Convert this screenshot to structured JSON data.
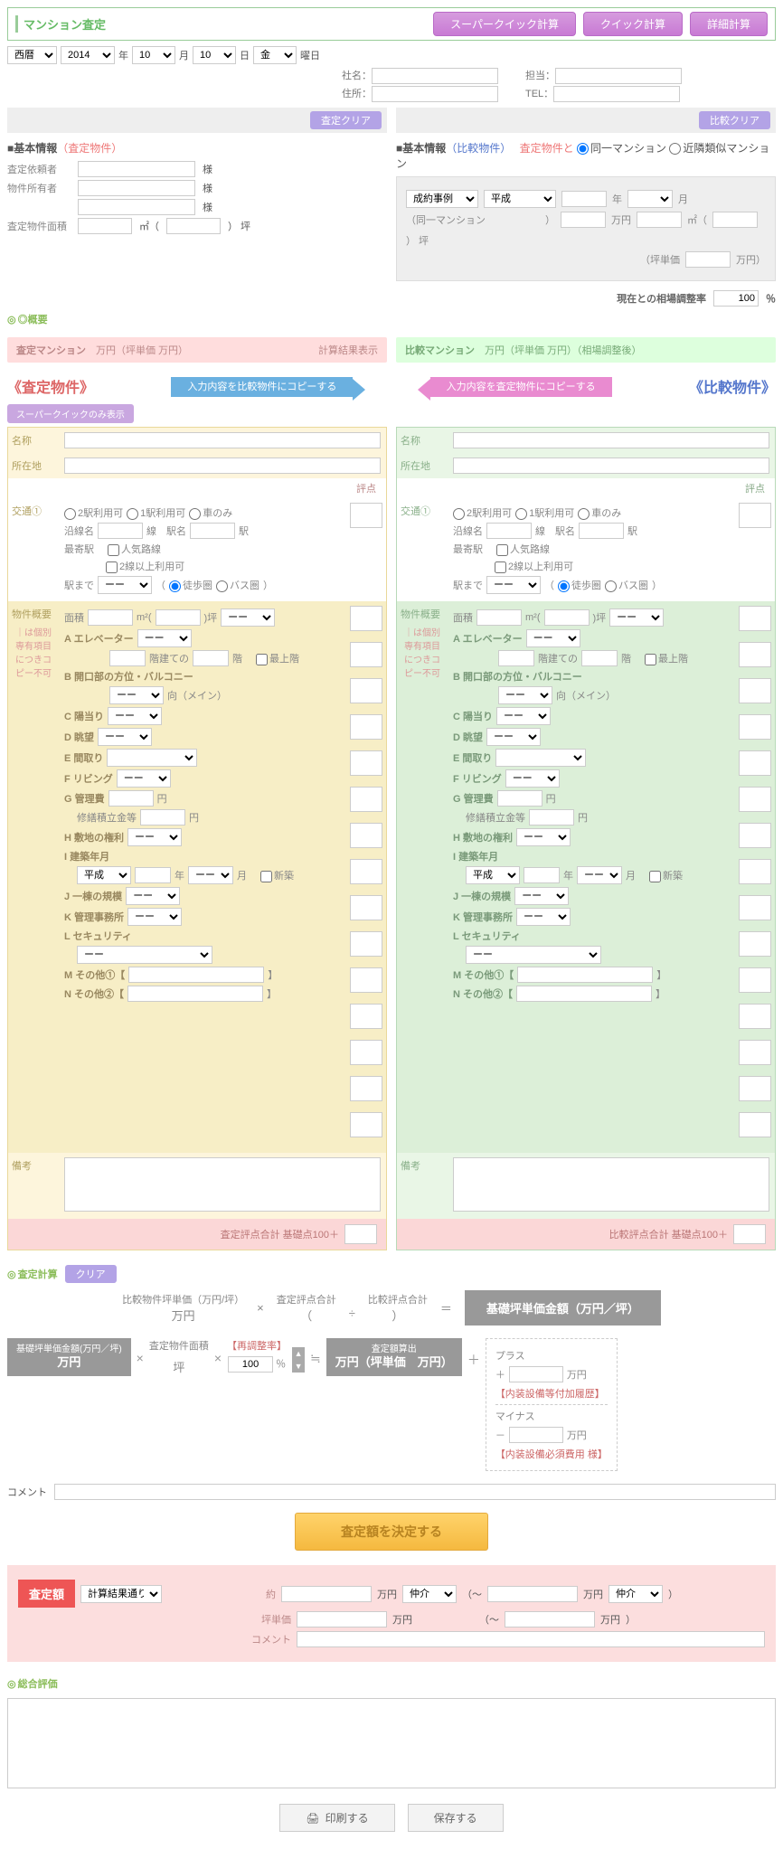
{
  "header": {
    "title": "マンション査定",
    "btns": [
      "スーパークイック計算",
      "クイック計算",
      "詳細計算"
    ]
  },
  "date": {
    "era": "西暦",
    "year": "2014",
    "y_lbl": "年",
    "month": "10",
    "m_lbl": "月",
    "day": "10",
    "d_lbl": "日",
    "dow": "金",
    "dow_lbl": "曜日"
  },
  "info": {
    "company": "社名：",
    "person": "担当：",
    "addr": "住所：",
    "tel": "TEL："
  },
  "clear": {
    "left": "査定クリア",
    "right": "比較クリア"
  },
  "basic": {
    "left_title": "■基本情報",
    "left_sub": "（査定物件）",
    "right_title": "■基本情報",
    "right_sub": "（比較物件）",
    "right_note": "査定物件と",
    "radio_same": "同一マンション",
    "radio_near": "近隣類似マンション"
  },
  "left_kv": {
    "k1": "査定依頼者",
    "k2": "物件所有者",
    "k3": "査定物件面積",
    "sama": "様",
    "sqm": "㎡（",
    "tsubo": "） 坪"
  },
  "comp": {
    "l1": "成約事例",
    "era": "平成",
    "y": "年",
    "m": "月",
    "l2": "（同一マンション",
    "l2b": "）",
    "man": "万円",
    "sqm": "㎡（",
    "tsubo": "） 坪",
    "l3": "（坪単価",
    "l3b": "万円）",
    "rate_lbl": "現在との相場調整率",
    "rate_val": "100",
    "pct": "％"
  },
  "summary": {
    "lbl": "◎概要",
    "left_lbl": "査定マンション",
    "left_txt": "万円（坪単価  万円）",
    "left_r": "計算結果表示",
    "right_lbl": "比較マンション",
    "right_txt": "万円（坪単価  万円）（相場調整後）"
  },
  "colshead": {
    "left": "《査定物件》",
    "right": "《比較物件》",
    "btn_toR": "入力内容を比較物件にコピーする",
    "btn_toL": "入力内容を査定物件にコピーする"
  },
  "tag": "スーパークイックのみ表示",
  "panel": {
    "name": "名称",
    "loc": "所在地",
    "score": "評点",
    "traffic": "交通①",
    "t_2st": "2駅利用可",
    "t_1st": "1駅利用可",
    "t_car": "車のみ",
    "line": "沿線名",
    "line_suf": "線",
    "sta": "駅名",
    "sta_suf": "駅",
    "nearest": "最寄駅",
    "pop": "人気路線",
    "two": "2線以上利用可",
    "to_sta": "駅まで",
    "dash": "ーー",
    "walk": "徒歩圏",
    "bus": "バス圏",
    "outline": "物件概要",
    "note": "｜は個別専有項目につきコピー不可",
    "area": "面積",
    "m2": "m²(",
    "tsubo": ")坪",
    "A": "A エレベーター",
    "floor": "階建ての",
    "floor2": "階",
    "top": "最上階",
    "B": "B 開口部の方位・バルコニー",
    "dir": "向（メイン）",
    "C": "C 陽当り",
    "D": "D 眺望",
    "E": "E 間取り",
    "F": "F リビング",
    "G": "G 管理費",
    "yen": "円",
    "repair": "修繕積立金等",
    "H": "H 敷地の権利",
    "I": "I 建築年月",
    "heisei": "平成",
    "yr": "年",
    "mo": "月",
    "new": "新築",
    "J": "J 一棟の規模",
    "K": "K 管理事務所",
    "L": "L セキュリティ",
    "M": "M その他①【",
    "N": "N その他②【",
    "close": "】",
    "remark": "備考",
    "foot_l": "査定評点合計 基礎点100＋",
    "foot_r": "比較評点合計 基礎点100＋"
  },
  "calc": {
    "title": "査定計算",
    "clear": "クリア",
    "a1": "比較物件坪単価（万円/坪）",
    "a1v": "万円",
    "x": "×",
    "a2": "査定評点合計",
    "a3": "比較評点合計",
    "paren": "（",
    "div": "÷",
    "paren2": "）",
    "eq": "＝",
    "a_res": "基礎坪単価金額（万円／坪）",
    "b1_t": "基礎坪単価金額(万円／坪)",
    "b1_v": "万円",
    "b2_t": "査定物件面積",
    "b2_v": "坪",
    "b3_t": "【再調整率】",
    "b3_v": "100",
    "pct": "％",
    "b4_t": "査定額算出",
    "b4_v": "万円（坪単価　万円）",
    "eqs": "≒",
    "plus": "＋",
    "pm_plus": "プラス",
    "pm_minus": "マイナス",
    "pm_man": "万円",
    "pm_int": "【内装設備等付加履歴】",
    "pm_req": "【内装設備必須費用 様】",
    "comment": "コメント"
  },
  "decide": "査定額を決定する",
  "satei": {
    "lbl": "査定額",
    "sel": "計算結果通り",
    "about": "約",
    "man": "万円",
    "fee": "仲介",
    "tilde": "（〜",
    "tsubo": "坪単価",
    "cmt": "コメント"
  },
  "overall": "総合評価",
  "footer": {
    "print": "印刷する",
    "save": "保存する"
  }
}
